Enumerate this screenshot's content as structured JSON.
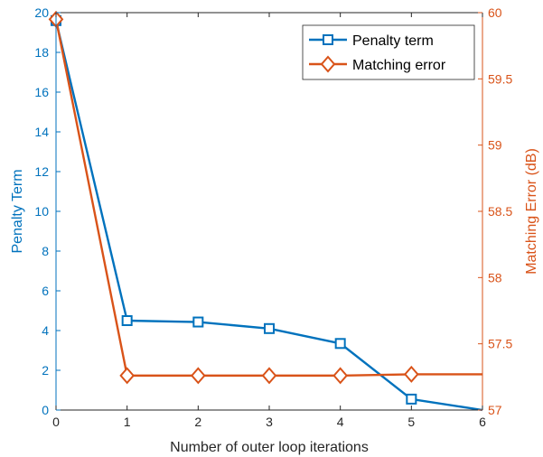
{
  "chart_data": {
    "type": "line",
    "title": "",
    "xlabel": "Number of outer loop iterations",
    "x": [
      0,
      1,
      2,
      3,
      4,
      5,
      6
    ],
    "xlim": [
      0,
      6
    ],
    "xticks": [
      "0",
      "1",
      "2",
      "3",
      "4",
      "5",
      "6"
    ],
    "grid": false,
    "legend_position": "top-right",
    "left_axis": {
      "label": "Penalty Term",
      "ylim": [
        0,
        20
      ],
      "ticks": [
        "0",
        "2",
        "4",
        "6",
        "8",
        "10",
        "12",
        "14",
        "16",
        "18",
        "20"
      ],
      "color": "#0072BD"
    },
    "right_axis": {
      "label": "Matching Error (dB)",
      "ylim": [
        57,
        60
      ],
      "ticks": [
        "57",
        "57.5",
        "58",
        "58.5",
        "59",
        "59.5",
        "60"
      ],
      "color": "#D95319"
    },
    "series": [
      {
        "name": "Penalty term",
        "axis": "left",
        "marker": "square",
        "color": "#0072BD",
        "x": [
          0,
          1,
          2,
          3,
          4,
          5,
          6
        ],
        "values": [
          19.6,
          4.5,
          4.43,
          4.1,
          3.35,
          0.55,
          0.0
        ],
        "marker_indices": [
          0,
          1,
          2,
          3,
          4,
          5
        ]
      },
      {
        "name": "Matching error",
        "axis": "right",
        "marker": "diamond",
        "color": "#D95319",
        "x": [
          0,
          1,
          2,
          3,
          4,
          5,
          6
        ],
        "values": [
          59.95,
          57.26,
          57.26,
          57.26,
          57.26,
          57.27,
          57.27
        ],
        "marker_indices": [
          0,
          1,
          2,
          3,
          4,
          5
        ]
      }
    ]
  }
}
